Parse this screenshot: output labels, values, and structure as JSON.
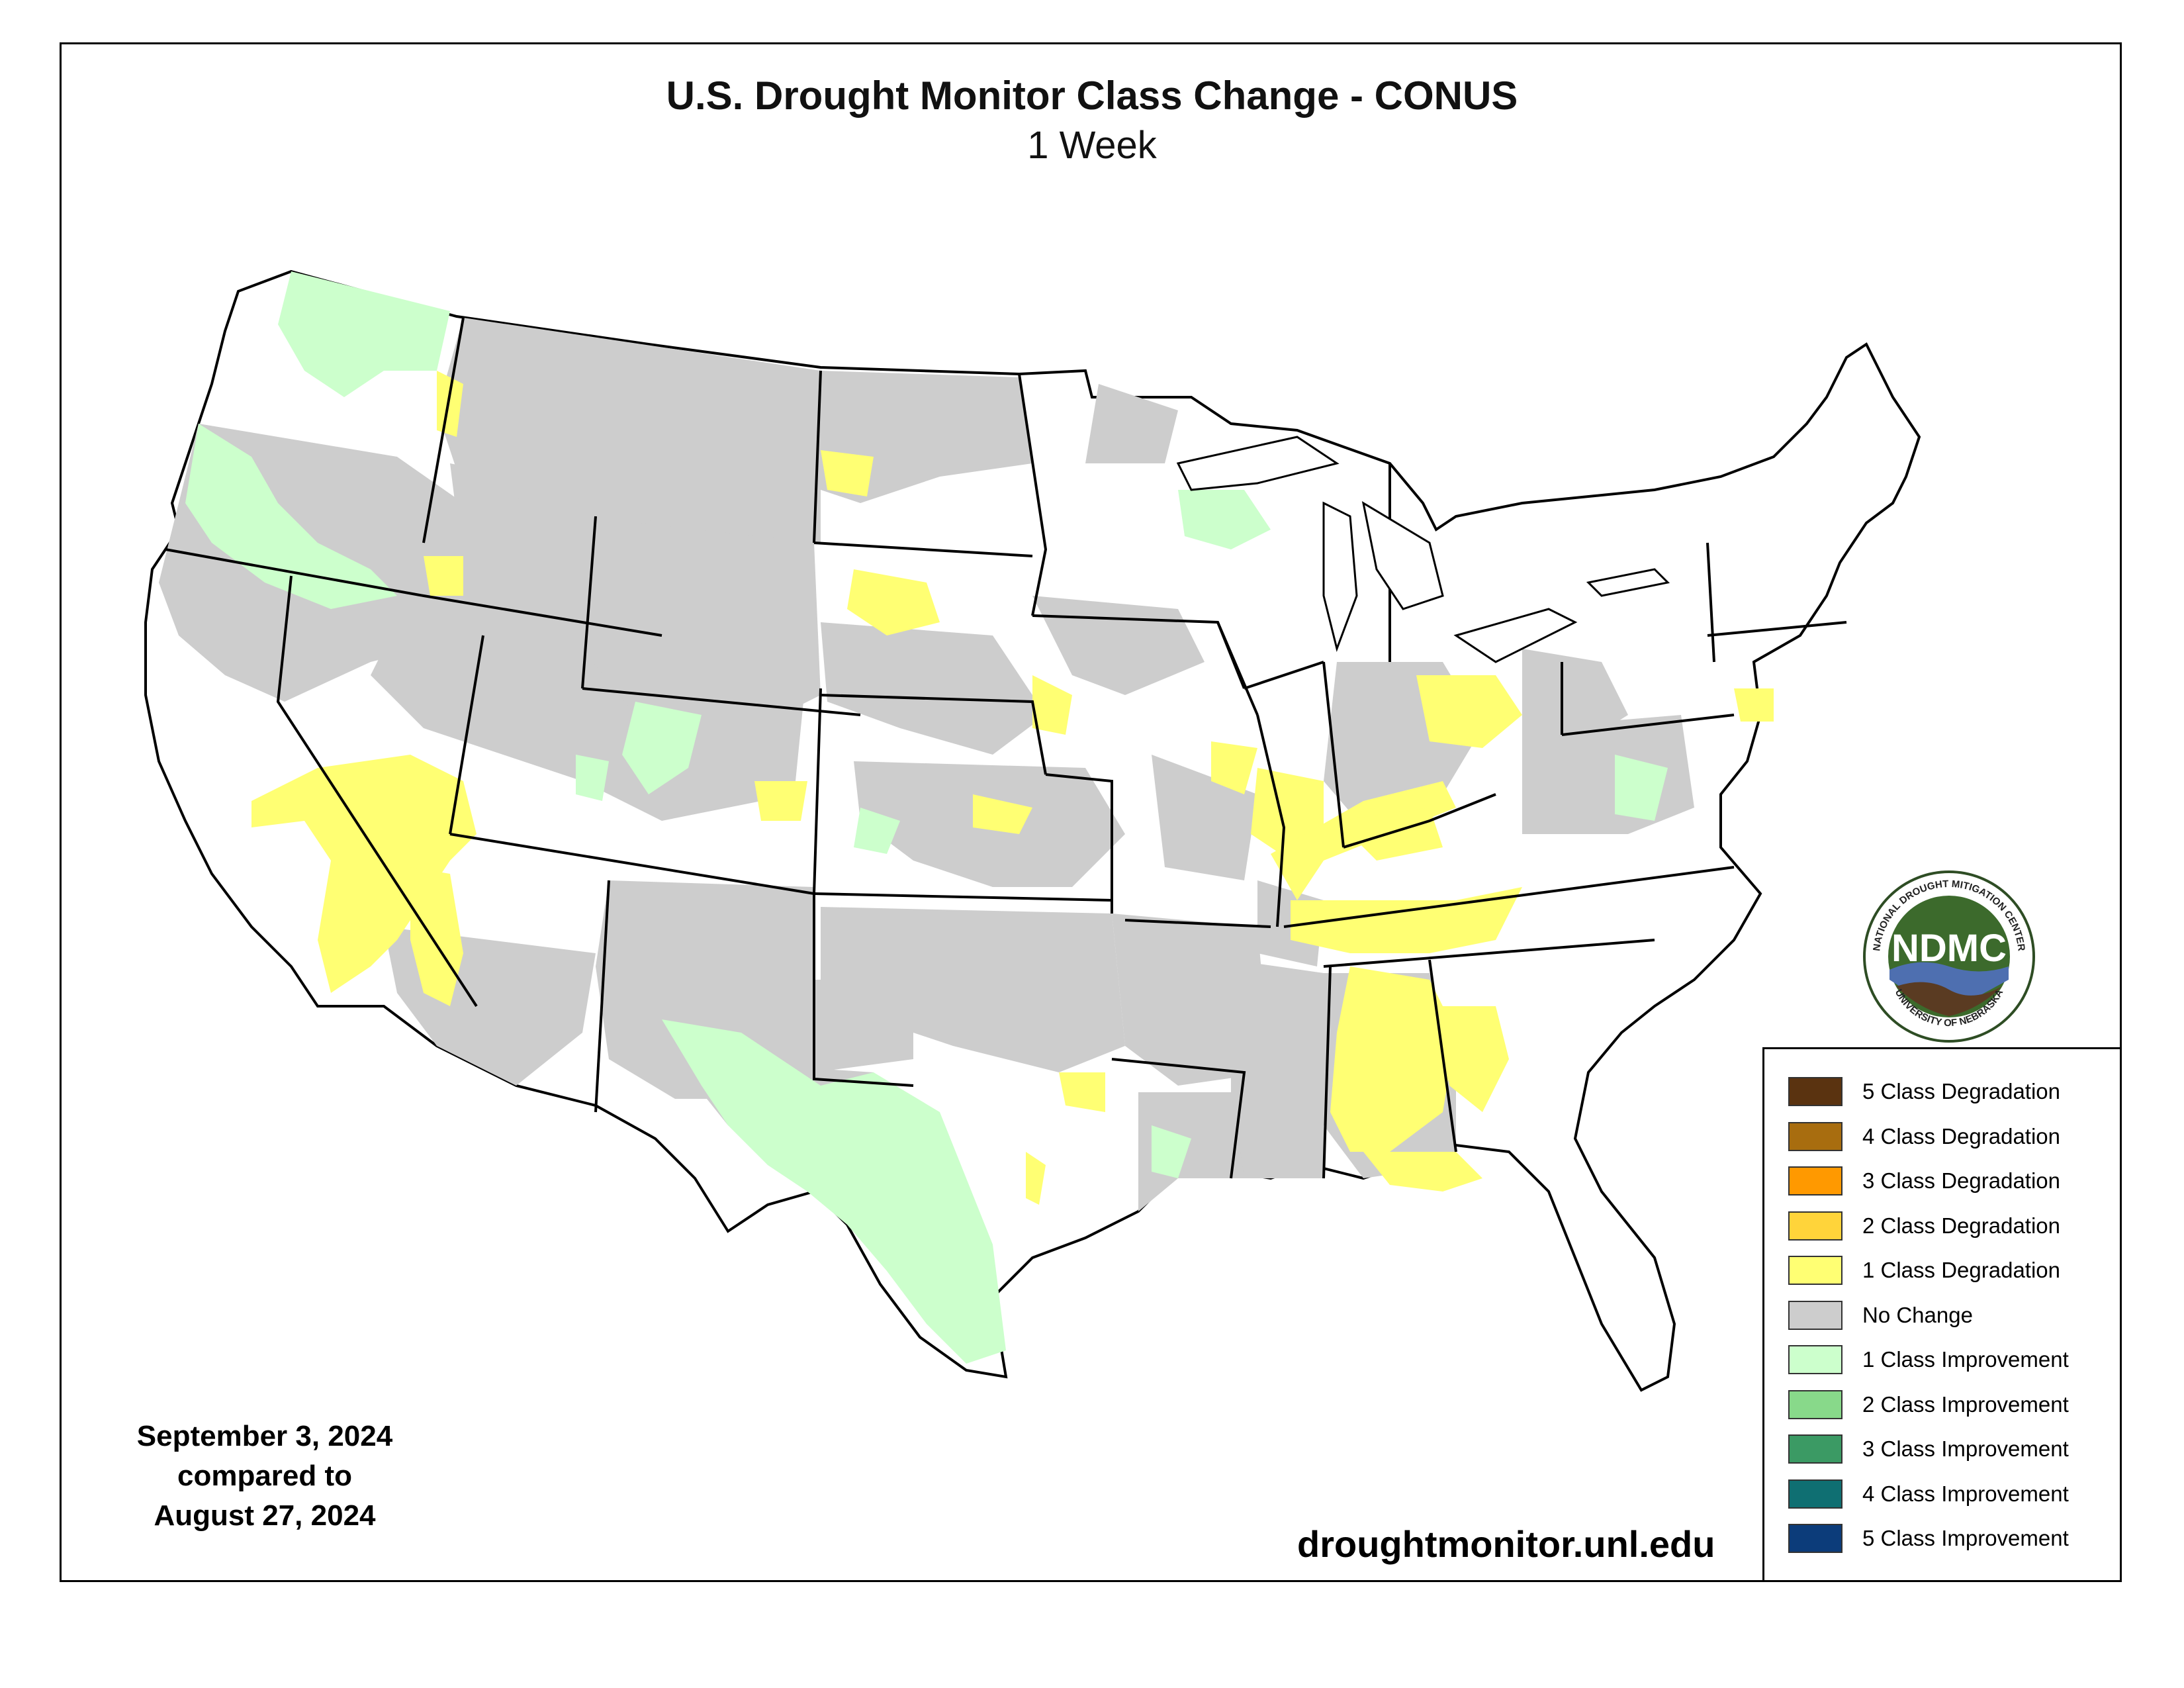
{
  "title": "U.S. Drought Monitor Class Change - CONUS",
  "subtitle": "1 Week",
  "date_block": {
    "line1": "September 3, 2024",
    "line2": "compared to",
    "line3": "August 27, 2024"
  },
  "website": "droughtmonitor.unl.edu",
  "logo": {
    "acronym": "NDMC",
    "ring_top": "NATIONAL DROUGHT MITIGATION CENTER",
    "ring_bottom": "UNIVERSITY OF NEBRASKA"
  },
  "legend": [
    {
      "label": "5 Class Degradation",
      "color": "#5a3310"
    },
    {
      "label": "4 Class Degradation",
      "color": "#a86d0f"
    },
    {
      "label": "3 Class Degradation",
      "color": "#ff9900"
    },
    {
      "label": "2 Class Degradation",
      "color": "#ffd43a"
    },
    {
      "label": "1 Class Degradation",
      "color": "#ffff73"
    },
    {
      "label": "No Change",
      "color": "#cdcdcd"
    },
    {
      "label": "1 Class Improvement",
      "color": "#ccffcc"
    },
    {
      "label": "2 Class Improvement",
      "color": "#88d98a"
    },
    {
      "label": "3 Class Improvement",
      "color": "#3b9a64"
    },
    {
      "label": "4 Class Improvement",
      "color": "#0f6f72"
    },
    {
      "label": "5 Class Improvement",
      "color": "#0c3c7a"
    }
  ],
  "colors": {
    "no_change": "#cdcdcd",
    "degradation_1": "#ffff73",
    "improvement_1": "#ccffcc",
    "land": "#ffffff",
    "border": "#000000"
  }
}
